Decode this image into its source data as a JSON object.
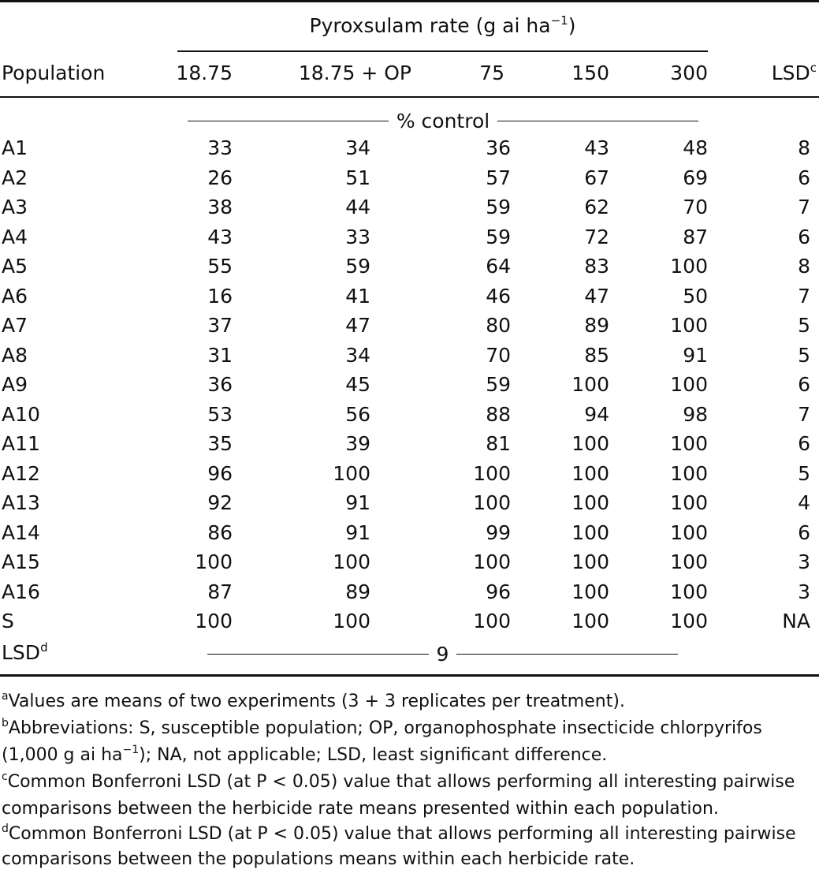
{
  "table": {
    "spanner_label": "Pyroxsulam rate (g ai ha",
    "spanner_sup": "−1",
    "spanner_close": ")",
    "headers": {
      "population": "Population",
      "rates": [
        "18.75",
        "18.75 + OP",
        "75",
        "150",
        "300"
      ],
      "lsd": "LSD",
      "lsd_sup": "c"
    },
    "unit_label": "% control",
    "rows": [
      {
        "pop": "A1",
        "vals": [
          "33",
          "34",
          "36",
          "43",
          "48"
        ],
        "lsd": "8"
      },
      {
        "pop": "A2",
        "vals": [
          "26",
          "51",
          "57",
          "67",
          "69"
        ],
        "lsd": "6"
      },
      {
        "pop": "A3",
        "vals": [
          "38",
          "44",
          "59",
          "62",
          "70"
        ],
        "lsd": "7"
      },
      {
        "pop": "A4",
        "vals": [
          "43",
          "33",
          "59",
          "72",
          "87"
        ],
        "lsd": "6"
      },
      {
        "pop": "A5",
        "vals": [
          "55",
          "59",
          "64",
          "83",
          "100"
        ],
        "lsd": "8"
      },
      {
        "pop": "A6",
        "vals": [
          "16",
          "41",
          "46",
          "47",
          "50"
        ],
        "lsd": "7"
      },
      {
        "pop": "A7",
        "vals": [
          "37",
          "47",
          "80",
          "89",
          "100"
        ],
        "lsd": "5"
      },
      {
        "pop": "A8",
        "vals": [
          "31",
          "34",
          "70",
          "85",
          "91"
        ],
        "lsd": "5"
      },
      {
        "pop": "A9",
        "vals": [
          "36",
          "45",
          "59",
          "100",
          "100"
        ],
        "lsd": "6"
      },
      {
        "pop": "A10",
        "vals": [
          "53",
          "56",
          "88",
          "94",
          "98"
        ],
        "lsd": "7"
      },
      {
        "pop": "A11",
        "vals": [
          "35",
          "39",
          "81",
          "100",
          "100"
        ],
        "lsd": "6"
      },
      {
        "pop": "A12",
        "vals": [
          "96",
          "100",
          "100",
          "100",
          "100"
        ],
        "lsd": "5"
      },
      {
        "pop": "A13",
        "vals": [
          "92",
          "91",
          "100",
          "100",
          "100"
        ],
        "lsd": "4"
      },
      {
        "pop": "A14",
        "vals": [
          "86",
          "91",
          "99",
          "100",
          "100"
        ],
        "lsd": "6"
      },
      {
        "pop": "A15",
        "vals": [
          "100",
          "100",
          "100",
          "100",
          "100"
        ],
        "lsd": "3"
      },
      {
        "pop": "A16",
        "vals": [
          "87",
          "89",
          "96",
          "100",
          "100"
        ],
        "lsd": "3"
      },
      {
        "pop": "S",
        "vals": [
          "100",
          "100",
          "100",
          "100",
          "100"
        ],
        "lsd": "NA"
      }
    ],
    "lsd_row": {
      "label": "LSD",
      "label_sup": "d",
      "value": "9"
    }
  },
  "footnotes": [
    {
      "mark": "a",
      "lines": [
        "Values are means of two experiments (3 + 3 replicates per treatment)."
      ]
    },
    {
      "mark": "b",
      "lines": [
        "Abbreviations: S, susceptible population; OP, organophosphate insecticide chlorpyrifos",
        "(1,000 g ai ha",
        "−1",
        "); NA, not applicable; LSD, least significant difference."
      ]
    },
    {
      "mark": "c",
      "lines": [
        "Common Bonferroni LSD (at P < 0.05) value that allows performing all interesting pairwise",
        "comparisons between the herbicide rate means presented within each population."
      ]
    },
    {
      "mark": "d",
      "lines": [
        "Common Bonferroni LSD (at P < 0.05) value that allows performing all interesting pairwise",
        "comparisons between the populations means within each herbicide rate."
      ]
    }
  ]
}
